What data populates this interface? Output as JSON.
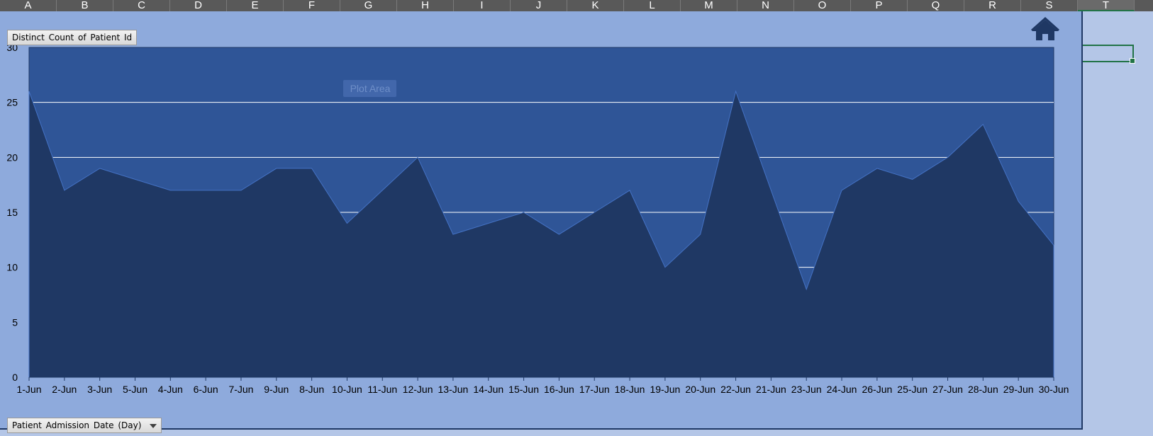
{
  "spreadsheet": {
    "columns": [
      "A",
      "B",
      "C",
      "D",
      "E",
      "F",
      "G",
      "H",
      "I",
      "J",
      "K",
      "L",
      "M",
      "N",
      "O",
      "P",
      "Q",
      "R",
      "S",
      "T"
    ],
    "selected_column": "T"
  },
  "pivot_chart": {
    "value_field_button": "Distinct Count of Patient Id",
    "axis_field_button": "Patient Admission Date (Day)",
    "plot_area_tooltip": "Plot Area",
    "home_button_icon": "home-icon"
  },
  "colors": {
    "page_bg": "#b4c6e7",
    "chart_area": "#8eaadc",
    "plot_area": "#2f5597",
    "series_fill": "#1f3864",
    "series_line": "#4472c4",
    "gridline": "#ffffff",
    "selection": "#217346"
  },
  "chart_data": {
    "type": "area",
    "categories": [
      "1-Jun",
      "2-Jun",
      "3-Jun",
      "5-Jun",
      "4-Jun",
      "6-Jun",
      "7-Jun",
      "9-Jun",
      "8-Jun",
      "10-Jun",
      "11-Jun",
      "12-Jun",
      "13-Jun",
      "14-Jun",
      "15-Jun",
      "16-Jun",
      "17-Jun",
      "18-Jun",
      "19-Jun",
      "20-Jun",
      "22-Jun",
      "21-Jun",
      "23-Jun",
      "24-Jun",
      "26-Jun",
      "25-Jun",
      "27-Jun",
      "28-Jun",
      "29-Jun",
      "30-Jun"
    ],
    "values": [
      26,
      17,
      19,
      18,
      17,
      17,
      17,
      19,
      19,
      14,
      17,
      20,
      13,
      14,
      15,
      13,
      15,
      17,
      10,
      13,
      26,
      17,
      8,
      17,
      19,
      18,
      20,
      23,
      16,
      12
    ],
    "y_ticks": [
      0,
      5,
      10,
      15,
      20,
      25,
      30
    ],
    "ylim": [
      0,
      30
    ],
    "grid": true,
    "legend": "none"
  }
}
